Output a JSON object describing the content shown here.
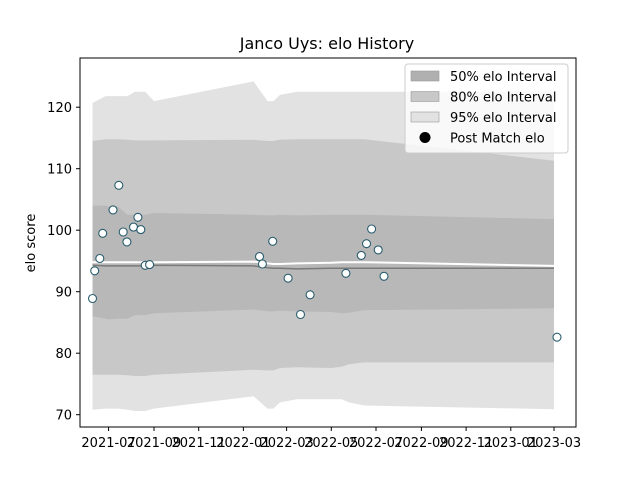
{
  "chart_data": {
    "type": "scatter",
    "title": "Janco Uys: elo History",
    "xlabel": "",
    "ylabel": "elo score",
    "xlim": [
      "2021-05-23",
      "2023-03-31"
    ],
    "ylim": [
      68,
      128
    ],
    "grid": false,
    "legend_position": "top-right",
    "legend": [
      {
        "label": "50% elo Interval",
        "kind": "band",
        "color": "#b0b0b0"
      },
      {
        "label": "80% elo Interval",
        "kind": "band",
        "color": "#c8c8c8"
      },
      {
        "label": "95% elo Interval",
        "kind": "band",
        "color": "#e2e2e2"
      },
      {
        "label": "Post Match elo",
        "kind": "marker",
        "color": "#000000"
      }
    ],
    "x_ticks": [
      "2021-07",
      "2021-09",
      "2021-11",
      "2022-01",
      "2022-03",
      "2022-05",
      "2022-07",
      "2022-09",
      "2022-11",
      "2023-01",
      "2023-03"
    ],
    "y_ticks": [
      70,
      80,
      90,
      100,
      110,
      120
    ],
    "bands": {
      "x": [
        "2021-06-09",
        "2021-06-27",
        "2021-07-01",
        "2021-07-14",
        "2021-07-27",
        "2021-08-06",
        "2021-08-20",
        "2021-09-01",
        "2022-01-15",
        "2022-02-03",
        "2022-02-11",
        "2022-02-20",
        "2022-03-15",
        "2022-05-01",
        "2022-05-15",
        "2022-05-25",
        "2022-06-15",
        "2023-03-01"
      ],
      "p95_upper": [
        120.7,
        121.8,
        121.8,
        121.8,
        121.8,
        122.5,
        122.5,
        121.0,
        124.2,
        121.0,
        121.0,
        122.0,
        122.5,
        122.5,
        122.5,
        122.5,
        122.5,
        122.5
      ],
      "p95_lower": [
        70.8,
        71.0,
        71.0,
        71.0,
        70.8,
        70.6,
        70.6,
        71.0,
        73.0,
        71.0,
        71.0,
        72.0,
        72.5,
        72.5,
        72.5,
        72.0,
        71.5,
        70.9
      ],
      "p80_upper": [
        114.5,
        114.8,
        114.8,
        114.8,
        114.7,
        114.6,
        114.6,
        114.6,
        114.7,
        114.5,
        114.5,
        114.7,
        114.8,
        114.8,
        114.8,
        114.8,
        114.8,
        111.3
      ],
      "p80_lower": [
        76.5,
        76.5,
        76.5,
        76.5,
        76.4,
        76.3,
        76.3,
        76.5,
        77.3,
        77.2,
        77.2,
        77.6,
        77.7,
        77.6,
        77.8,
        78.2,
        78.5,
        78.5
      ],
      "p50_upper": [
        104.0,
        104.0,
        103.8,
        103.8,
        102.5,
        102.5,
        102.5,
        102.8,
        102.5,
        102.4,
        102.4,
        102.5,
        102.4,
        102.5,
        102.5,
        102.5,
        102.5,
        101.8
      ],
      "p50_lower": [
        86.0,
        85.6,
        85.5,
        85.6,
        85.6,
        86.2,
        86.2,
        86.5,
        87.1,
        86.8,
        86.8,
        86.9,
        86.8,
        86.7,
        86.5,
        86.6,
        87.0,
        87.3
      ],
      "median": [
        94.3,
        94.2,
        94.2,
        94.2,
        94.2,
        94.2,
        94.2,
        94.3,
        94.2,
        93.9,
        93.8,
        93.8,
        93.7,
        93.8,
        93.8,
        93.8,
        93.8,
        93.8
      ],
      "mean": [
        94.8,
        94.8,
        94.8,
        94.8,
        94.8,
        94.8,
        94.8,
        94.8,
        94.9,
        94.6,
        94.5,
        94.5,
        94.6,
        94.7,
        94.8,
        94.8,
        94.8,
        94.2
      ]
    },
    "series": [
      {
        "name": "Post Match elo",
        "x": [
          "2021-06-09",
          "2021-06-12",
          "2021-06-19",
          "2021-06-23",
          "2021-07-07",
          "2021-07-15",
          "2021-07-21",
          "2021-07-26",
          "2021-08-04",
          "2021-08-10",
          "2021-08-14",
          "2021-08-20",
          "2021-08-26",
          "2022-01-23",
          "2022-01-27",
          "2022-02-10",
          "2022-03-03",
          "2022-03-20",
          "2022-04-02",
          "2022-05-21",
          "2022-06-11",
          "2022-06-18",
          "2022-06-25",
          "2022-07-04",
          "2022-07-12",
          "2023-03-05"
        ],
        "y": [
          88.9,
          93.4,
          95.4,
          99.5,
          103.3,
          107.3,
          99.7,
          98.1,
          100.5,
          102.1,
          100.1,
          94.3,
          94.4,
          95.7,
          94.5,
          98.2,
          92.2,
          86.3,
          89.5,
          93.0,
          95.9,
          97.8,
          100.2,
          96.8,
          92.5,
          82.6
        ]
      }
    ]
  }
}
